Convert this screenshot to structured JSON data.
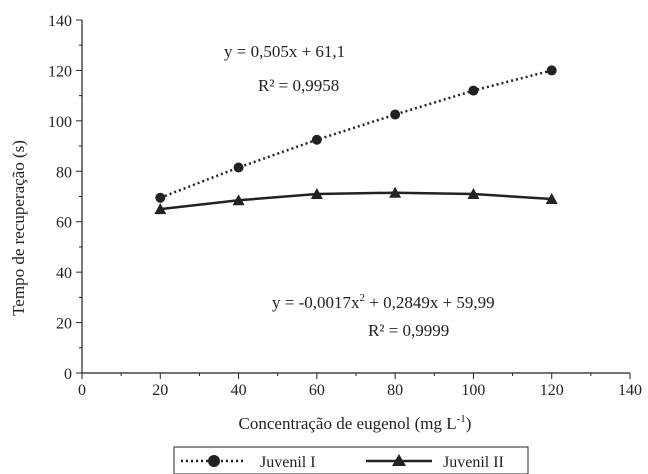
{
  "chart_data": {
    "type": "line",
    "xlabel": "Concentração de eugenol (mg L",
    "xlabel_sup": "-1",
    "xlabel_end": ")",
    "ylabel": "Tempo de recuperação (s)",
    "xlim": [
      0,
      140
    ],
    "ylim": [
      0,
      140
    ],
    "x_ticks": [
      "0",
      "20",
      "40",
      "60",
      "80",
      "100",
      "120",
      "140"
    ],
    "y_ticks": [
      "0",
      "20",
      "40",
      "60",
      "80",
      "100",
      "120",
      "140"
    ],
    "grid": false,
    "legend_position": "bottom-center",
    "series": [
      {
        "name": "Juvenil I",
        "marker": "circle",
        "line": "dotted",
        "color": "#222222",
        "x": [
          20,
          40,
          60,
          80,
          100,
          120
        ],
        "y": [
          69.5,
          81.5,
          92.5,
          102.5,
          112,
          120
        ]
      },
      {
        "name": "Juvenil II",
        "marker": "triangle",
        "line": "solid",
        "color": "#222222",
        "x": [
          20,
          40,
          60,
          80,
          100,
          120
        ],
        "y": [
          65,
          68.5,
          71,
          71.5,
          71,
          69
        ]
      }
    ],
    "annotations": [
      {
        "lines": [
          "y = 0,505x + 61,1",
          "R² = 0,9958"
        ]
      },
      {
        "line1_pre": "y = -0,0017x",
        "line1_sup": "2",
        "line1_post": " + 0,2849x + 59,99",
        "line2": "R² = 0,9999"
      }
    ]
  }
}
